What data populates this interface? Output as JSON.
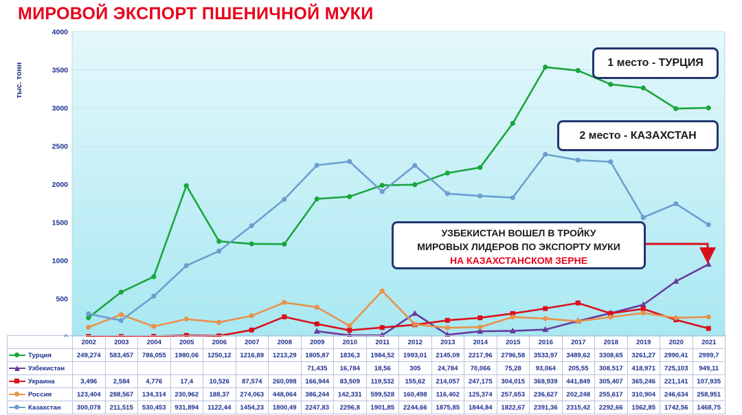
{
  "title": "МИРОВОЙ ЭКСПОРТ ПШЕНИЧНОЙ МУКИ",
  "callouts": {
    "turkey": "1 место - ТУРЦИЯ",
    "kazakhstan": "2 место - КАЗАХСТАН",
    "uzbekistan_line1": "УЗБЕКИСТАН ВОШЕЛ В ТРОЙКУ",
    "uzbekistan_line2": "МИРОВЫХ ЛИДЕРОВ ПО ЭКСПОРТУ МУКИ",
    "uzbekistan_line3": "НА КАЗАХСТАНСКОМ ЗЕРНЕ"
  },
  "chart_data": {
    "type": "line",
    "ylabel": "тыс. тонн",
    "ylim": [
      0,
      4000
    ],
    "yticks": [
      0,
      500,
      1000,
      1500,
      2000,
      2500,
      3000,
      3500,
      4000
    ],
    "grid": true,
    "legend": "table-below",
    "categories": [
      "2002",
      "2003",
      "2004",
      "2005",
      "2006",
      "2007",
      "2008",
      "2009",
      "2010",
      "2011",
      "2012",
      "2013",
      "2014",
      "2015",
      "2016",
      "2017",
      "2018",
      "2019",
      "2020",
      "2021"
    ],
    "series": [
      {
        "name": "Турция",
        "color": "#1aa53c",
        "marker": "circle",
        "values": [
          249.274,
          583.457,
          786.055,
          1980.06,
          1250.12,
          1216.89,
          1213.29,
          1805.87,
          1836.3,
          1984.52,
          1993.01,
          2145.09,
          2217.96,
          2796.58,
          3533.97,
          3489.62,
          3308.65,
          3261.27,
          2990.41,
          2999.7
        ],
        "labels": [
          "249,274",
          "583,457",
          "786,055",
          "1980,06",
          "1250,12",
          "1216,89",
          "1213,29",
          "1805,87",
          "1836,3",
          "1984,52",
          "1993,01",
          "2145,09",
          "2217,96",
          "2796,58",
          "3533,97",
          "3489,62",
          "3308,65",
          "3261,27",
          "2990,41",
          "2999,7"
        ]
      },
      {
        "name": "Узбекистан",
        "color": "#6a3a9c",
        "marker": "triangle",
        "values": [
          null,
          null,
          null,
          null,
          null,
          null,
          null,
          71.435,
          16.784,
          18.56,
          305,
          24.784,
          70.066,
          75.28,
          93.064,
          205.55,
          308.517,
          418.971,
          725.103,
          949.11
        ],
        "labels": [
          "",
          "",
          "",
          "",
          "",
          "",
          "",
          "71,435",
          "16,784",
          "18,56",
          "305",
          "24,784",
          "70,066",
          "75,28",
          "93,064",
          "205,55",
          "308,517",
          "418,971",
          "725,103",
          "949,11"
        ]
      },
      {
        "name": "Украина",
        "color": "#d9101c",
        "marker": "square",
        "values": [
          3.496,
          2.584,
          4.776,
          17.4,
          10.526,
          87.574,
          260.098,
          166.944,
          83.509,
          119.532,
          155.62,
          214.057,
          247.175,
          304.015,
          368.939,
          441.849,
          305.407,
          365.246,
          221.141,
          107.935
        ],
        "labels": [
          "3,496",
          "2,584",
          "4,776",
          "17,4",
          "10,526",
          "87,574",
          "260,098",
          "166,944",
          "83,509",
          "119,532",
          "155,62",
          "214,057",
          "247,175",
          "304,015",
          "368,939",
          "441,849",
          "305,407",
          "365,246",
          "221,141",
          "107,935"
        ]
      },
      {
        "name": "Россия",
        "color": "#e8924a",
        "marker": "circle",
        "values": [
          123.404,
          288.567,
          134.314,
          230.962,
          188.37,
          274.063,
          448.064,
          386.244,
          142.331,
          599.528,
          160.498,
          116.402,
          125.374,
          257.653,
          236.627,
          202.248,
          255.617,
          310.904,
          246.634,
          258.951
        ],
        "labels": [
          "123,404",
          "288,567",
          "134,314",
          "230,962",
          "188,37",
          "274,063",
          "448,064",
          "386,244",
          "142,331",
          "599,528",
          "160,498",
          "116,402",
          "125,374",
          "257,653",
          "236,627",
          "202,248",
          "255,617",
          "310,904",
          "246,634",
          "258,951"
        ]
      },
      {
        "name": "Казахстан",
        "color": "#6c9ed0",
        "marker": "circle",
        "values": [
          300.078,
          211.515,
          530.453,
          931.894,
          1122.44,
          1454.23,
          1800.49,
          2247.83,
          2296.8,
          1901.85,
          2244.66,
          1875.85,
          1844.84,
          1822.67,
          2391.36,
          2315.42,
          2292.66,
          1562.85,
          1742.56,
          1468.75
        ],
        "labels": [
          "300,078",
          "211,515",
          "530,453",
          "931,894",
          "1122,44",
          "1454,23",
          "1800,49",
          "2247,83",
          "2296,8",
          "1901,85",
          "2244,66",
          "1875,85",
          "1844,84",
          "1822,67",
          "2391,36",
          "2315,42",
          "2292,66",
          "1562,85",
          "1742,56",
          "1468,75"
        ]
      }
    ]
  }
}
